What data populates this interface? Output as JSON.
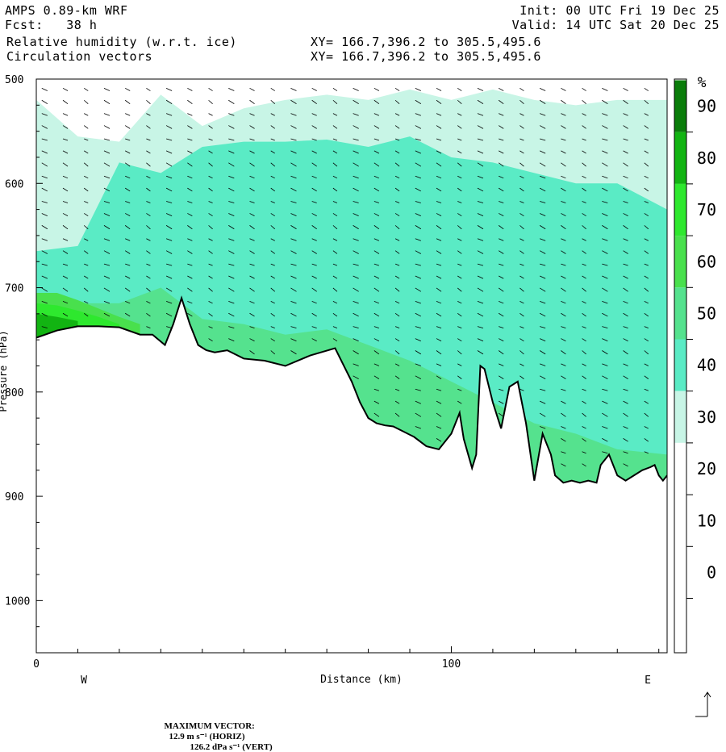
{
  "header": {
    "model": "AMPS 0.89-km WRF",
    "fcst": "Fcst:   38 h",
    "variable": "Relative humidity (w.r.t. ice)",
    "overlay": "Circulation vectors",
    "init": "Init: 00 UTC Fri 19 Dec 25",
    "valid": "Valid: 14 UTC Sat 20 Dec 25",
    "xy1": "XY= 166.7,396.2 to 305.5,495.6",
    "xy2": "XY= 166.7,396.2 to 305.5,495.6"
  },
  "footer": {
    "max_vector_label": "MAXIMUM VECTOR:",
    "max_horiz": "12.9 m s⁻¹ (HORIZ)",
    "max_vert": "126.2 dPa s⁻¹ (VERT)"
  },
  "chart_data": {
    "type": "heatmap",
    "title": "Relative humidity (w.r.t. ice)",
    "xlabel": "Distance (km)",
    "ylabel": "Pressure (hPa)",
    "xlim": [
      0,
      152
    ],
    "ylim": [
      1050,
      500
    ],
    "x_ticks": [
      0,
      100
    ],
    "y_ticks": [
      500,
      600,
      700,
      800,
      900,
      1000
    ],
    "x_end_labels": {
      "left": "W",
      "right": "E"
    },
    "colorbar": {
      "unit": "%",
      "levels": [
        0,
        10,
        20,
        30,
        40,
        50,
        60,
        70,
        80,
        90
      ],
      "colors": [
        "#ffffff",
        "#ffffff",
        "#ffffff",
        "#c8f5e6",
        "#5aebc5",
        "#55e28e",
        "#49e04d",
        "#2ee82e",
        "#12b412",
        "#0a7d0a"
      ]
    },
    "terrain_pressure": {
      "x": [
        0,
        5,
        10,
        15,
        20,
        25,
        28,
        31,
        33,
        35,
        37,
        39,
        41,
        43,
        46,
        50,
        55,
        60,
        66,
        72,
        76,
        78,
        80,
        82,
        84,
        86,
        88,
        91,
        94,
        97,
        100,
        102,
        103,
        105,
        106,
        107,
        108,
        110,
        112,
        114,
        116,
        118,
        120,
        122,
        124,
        125,
        127,
        129,
        131,
        133,
        135,
        136,
        138,
        140,
        142,
        144,
        146,
        148,
        149,
        150,
        151,
        152
      ],
      "p": [
        748,
        741,
        737,
        737,
        738,
        745,
        745,
        755,
        735,
        710,
        735,
        755,
        760,
        762,
        760,
        768,
        770,
        775,
        765,
        758,
        790,
        810,
        825,
        830,
        832,
        833,
        837,
        843,
        852,
        855,
        840,
        820,
        845,
        873,
        860,
        775,
        778,
        810,
        835,
        795,
        790,
        830,
        885,
        840,
        860,
        880,
        887,
        885,
        887,
        885,
        887,
        870,
        860,
        880,
        885,
        880,
        875,
        872,
        870,
        880,
        885,
        880
      ]
    },
    "humidity_bands": [
      {
        "level": "30-40",
        "top_x": [
          0,
          10,
          20,
          30,
          40,
          50,
          60,
          70,
          80,
          90,
          100,
          110,
          120,
          130,
          140,
          152
        ],
        "top_p": [
          520,
          555,
          560,
          515,
          545,
          528,
          520,
          515,
          520,
          510,
          520,
          510,
          520,
          525,
          520,
          520
        ]
      },
      {
        "level": "40-50",
        "top_x": [
          0,
          10,
          20,
          30,
          40,
          50,
          60,
          70,
          80,
          90,
          100,
          110,
          120,
          130,
          140,
          152
        ],
        "top_p": [
          665,
          660,
          580,
          590,
          565,
          560,
          560,
          558,
          565,
          555,
          575,
          580,
          590,
          600,
          600,
          625
        ]
      },
      {
        "level": "50-60",
        "top_x": [
          0,
          10,
          20,
          30,
          40,
          50,
          60,
          70,
          80,
          90,
          100,
          110,
          120,
          130,
          140,
          152
        ],
        "top_p": [
          710,
          715,
          715,
          700,
          730,
          735,
          745,
          740,
          755,
          770,
          790,
          810,
          830,
          840,
          855,
          860
        ]
      },
      {
        "level": "60-70",
        "top_x": [
          0,
          5,
          10,
          15,
          20,
          25
        ],
        "top_p": [
          705,
          705,
          712,
          720,
          728,
          735
        ]
      },
      {
        "level": "70-80",
        "top_x": [
          0,
          5,
          10,
          15,
          20
        ],
        "top_p": [
          715,
          717,
          722,
          728,
          735
        ]
      },
      {
        "level": "80-90",
        "top_x": [
          0,
          5,
          10
        ],
        "top_p": [
          725,
          728,
          732
        ]
      }
    ]
  }
}
